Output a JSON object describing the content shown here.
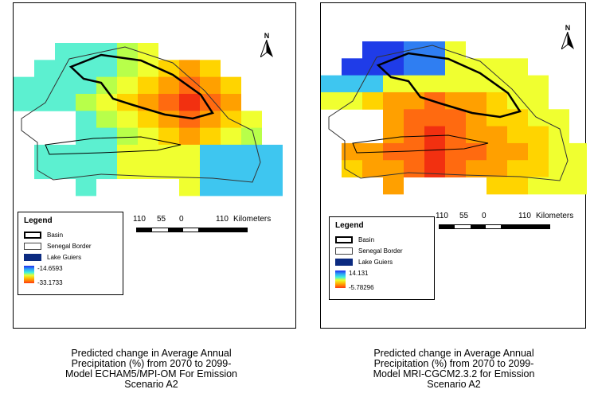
{
  "left_map": {
    "legend": {
      "title": "Legend",
      "basin_label": "Basin",
      "border_label": "Senegal Border",
      "lake_label": "Lake Guiers",
      "ramp_max": "-14.6593",
      "ramp_min": "-33.1733",
      "colors": {
        "lake": "#0b2a80",
        "ramp_top": "#1e2cf0",
        "ramp_bottom": "#ff3a10"
      }
    },
    "scale": {
      "n110a": "110",
      "n55": "55",
      "n0": "0",
      "n110b": "110",
      "unit": "Kilometers"
    },
    "north_label": "N",
    "caption": [
      "Predicted change in Average Annual",
      "Precipitation (%) from 2070 to 2099-",
      "Model ECHAM5/MPI-OM For Emission",
      "Scenario A2"
    ]
  },
  "right_map": {
    "legend": {
      "title": "Legend",
      "basin_label": "Basin",
      "border_label": "Senegal Border",
      "lake_label": "Lake Guiers",
      "ramp_max": "14.131",
      "ramp_min": "-5.78296",
      "colors": {
        "lake": "#0b2a80",
        "ramp_top": "#1e2cf0",
        "ramp_bottom": "#ff3a10"
      }
    },
    "scale": {
      "n110a": "110",
      "n55": "55",
      "n0": "0",
      "n110b": "110",
      "unit": "Kilometers"
    },
    "north_label": "N",
    "caption": [
      "Predicted change in Average Annual",
      "Precipitation (%) from 2070 to 2099-",
      "Model MRI-CGCM2.3.2 for Emission",
      "Scenario A2"
    ]
  }
}
